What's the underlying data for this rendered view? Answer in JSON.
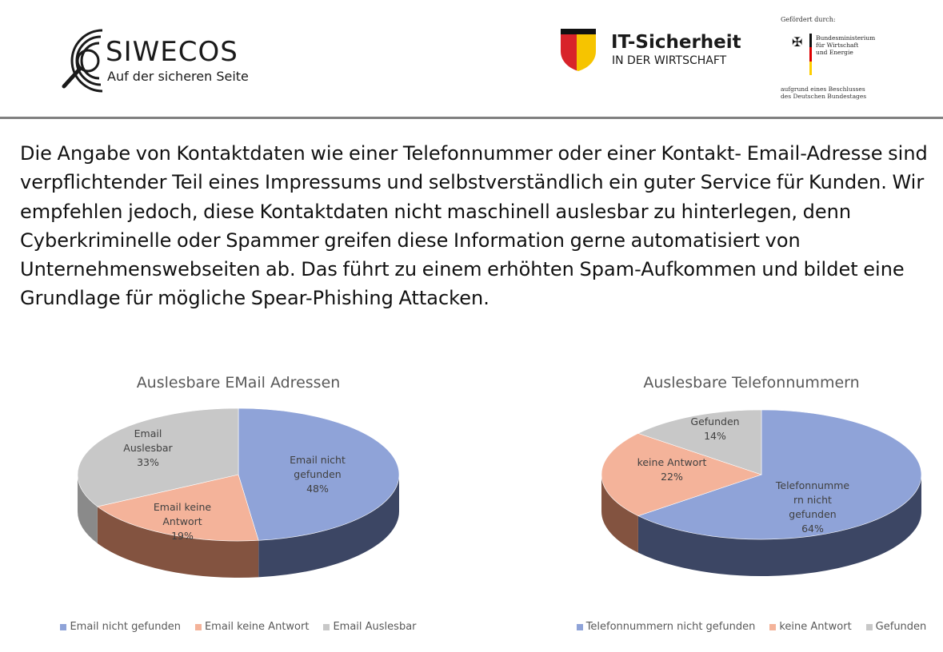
{
  "header": {
    "siwecos_name": "SIWECOS",
    "siwecos_tagline": "Auf der sicheren Seite",
    "it_title": "IT-Sicherheit",
    "it_subtitle": "IN DER WIRTSCHAFT",
    "funded_by": "Gefördert durch:",
    "ministry_line1": "Bundesministerium",
    "ministry_line2": "für Wirtschaft",
    "ministry_line3": "und Energie",
    "decision_line1": "aufgrund eines Beschlusses",
    "decision_line2": "des Deutschen Bundestages"
  },
  "intro_text": "Die Angabe von Kontaktdaten wie einer Telefonnummer oder einer Kontakt- Email-Adresse sind verpflichtender Teil eines Impressums und selbstverständlich ein guter Service für Kunden. Wir empfehlen jedoch, diese Kontaktdaten nicht maschinell auslesbar zu hinterlegen, denn Cyberkriminelle oder Spammer greifen diese Information gerne automatisiert von Unternehmenswebseiten ab. Das führt zu einem erhöhten Spam-Aufkommen und bildet eine Grundlage für mögliche Spear-Phishing Attacken.",
  "chart_data": [
    {
      "type": "pie",
      "title": "Auslesbare EMail Adressen",
      "categories": [
        "Email nicht gefunden",
        "Email keine Antwort",
        "Email Auslesbar"
      ],
      "values": [
        48,
        19,
        33
      ],
      "data_labels": [
        [
          "Email nicht",
          "gefunden",
          "48%"
        ],
        [
          "Email keine",
          "Antwort",
          "19%"
        ],
        [
          "Email",
          "Auslesbar",
          "33%"
        ]
      ],
      "colors": [
        "#8fa3d8",
        "#f4b39a",
        "#c8c8c8"
      ],
      "side_colors": [
        "#3c4664",
        "#835340",
        "#8a8a8a"
      ],
      "legend_position": "bottom",
      "style": "3d"
    },
    {
      "type": "pie",
      "title": "Auslesbare Telefonnummern",
      "categories": [
        "Telefonnummern nicht gefunden",
        "keine Antwort",
        "Gefunden"
      ],
      "values": [
        64,
        22,
        14
      ],
      "data_labels": [
        [
          "Telefonnumme",
          "rn nicht",
          "gefunden",
          "64%"
        ],
        [
          "keine Antwort",
          "22%"
        ],
        [
          "Gefunden",
          "14%"
        ]
      ],
      "colors": [
        "#8fa3d8",
        "#f4b39a",
        "#c8c8c8"
      ],
      "side_colors": [
        "#3c4664",
        "#835340",
        "#8a8a8a"
      ],
      "legend_position": "bottom",
      "style": "3d"
    }
  ]
}
